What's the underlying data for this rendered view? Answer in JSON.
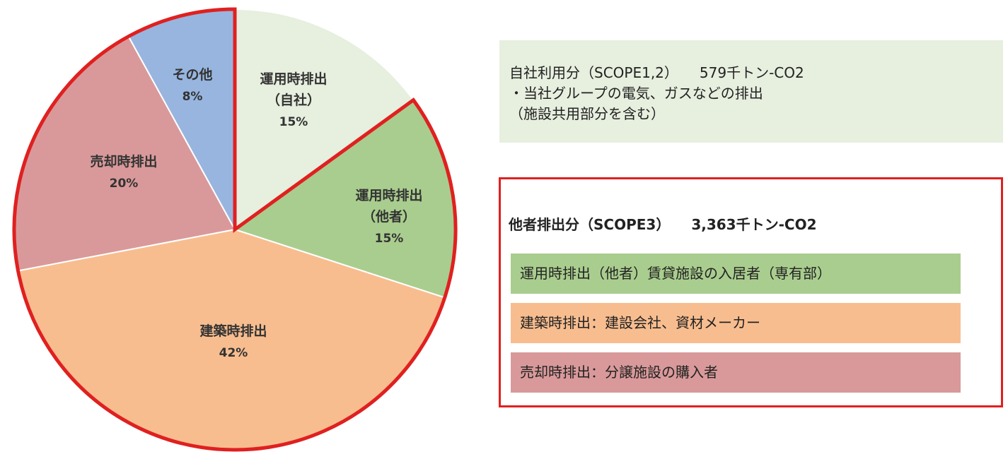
{
  "chart_data": {
    "type": "pie",
    "start_angle_deg": 0,
    "direction": "clockwise",
    "slices": [
      {
        "label_lines": [
          "運用時排出",
          "（自社）"
        ],
        "percent_label": "15%",
        "value": 15,
        "color": "#e7efdf"
      },
      {
        "label_lines": [
          "運用時排出",
          "（他者）"
        ],
        "percent_label": "15%",
        "value": 15,
        "color": "#a9cd8e"
      },
      {
        "label_lines": [
          "建築時排出"
        ],
        "percent_label": "42%",
        "value": 42,
        "color": "#f8bd8f"
      },
      {
        "label_lines": [
          "売却時排出"
        ],
        "percent_label": "20%",
        "value": 20,
        "color": "#d9999a"
      },
      {
        "label_lines": [
          "その他"
        ],
        "percent_label": "8%",
        "value": 8,
        "color": "#97b5df"
      }
    ],
    "highlight": {
      "from_slice": 1,
      "to_slice": 4,
      "color": "#e02020"
    }
  },
  "scope12": {
    "title": "自社利用分（SCOPE1,2）",
    "value": "579千トン-CO2",
    "line1": "・当社グループの電気、ガスなどの排出",
    "line2": "（施設共用部分を含む）",
    "background": "#e7efdf"
  },
  "scope3": {
    "title": "他者排出分（SCOPE3）",
    "value": "3,363千トン-CO2",
    "border_color": "#e02020",
    "items": [
      {
        "text": "運用時排出（他者）賃貸施設の入居者（専有部）",
        "color": "#a9cd8e"
      },
      {
        "text": "建築時排出：建設会社、資材メーカー",
        "color": "#f8bd8f"
      },
      {
        "text": "売却時排出：分譲施設の購入者",
        "color": "#d9999a"
      }
    ]
  }
}
